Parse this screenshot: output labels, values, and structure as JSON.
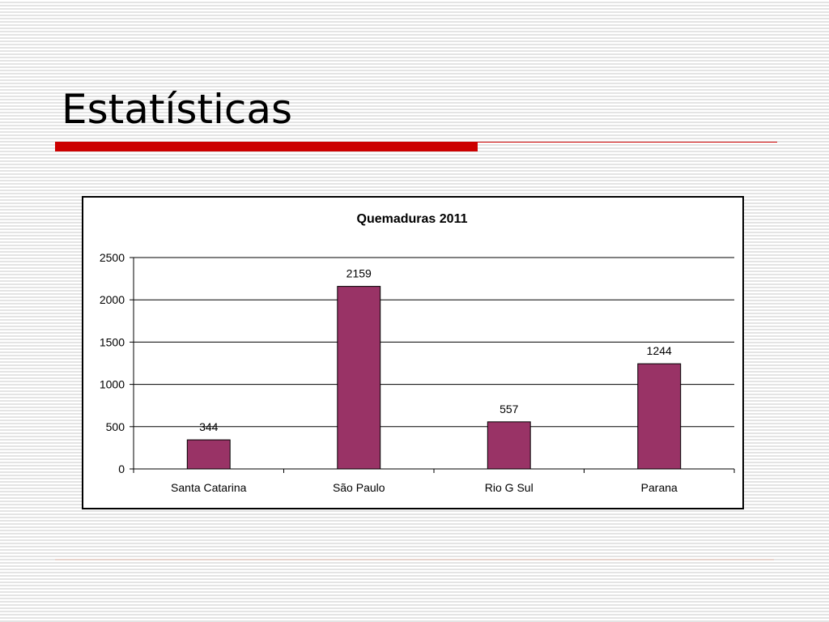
{
  "slide": {
    "title": "Estatísticas"
  },
  "colors": {
    "accent": "#cc0000",
    "bar_fill": "#993366",
    "bar_stroke": "#000000"
  },
  "chart_data": {
    "type": "bar",
    "title": "Quemaduras 2011",
    "categories": [
      "Santa Catarina",
      "São Paulo",
      "Rio G Sul",
      "Parana"
    ],
    "series": [
      {
        "values": [
          344,
          2159,
          557,
          1244
        ]
      }
    ],
    "ylim": [
      0,
      2500
    ],
    "yticks": [
      0,
      500,
      1000,
      1500,
      2000,
      2500
    ],
    "xlabel": "",
    "ylabel": "",
    "grid": true,
    "legend": "none",
    "data_labels": true
  }
}
